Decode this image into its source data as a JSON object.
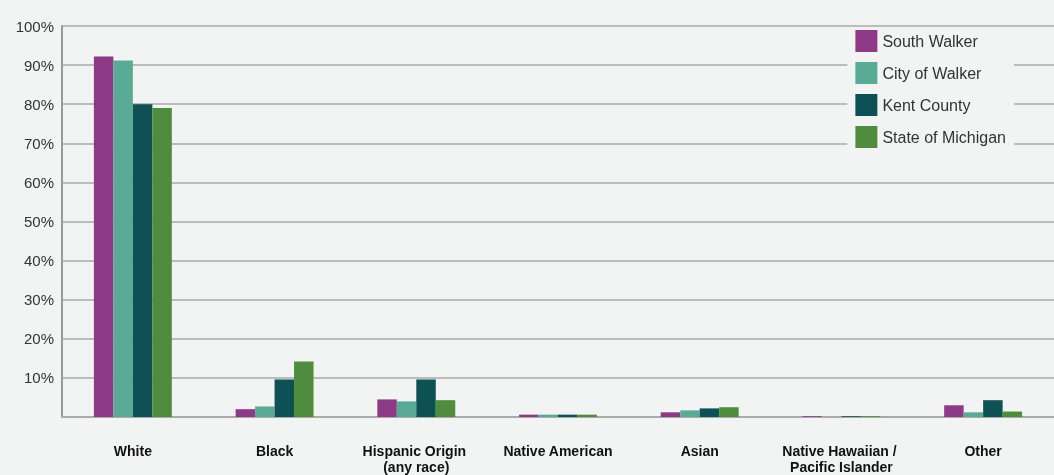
{
  "chart_data": {
    "type": "bar",
    "categories": [
      "White",
      "Black",
      "Hispanic Origin (any race)",
      "Native American",
      "Asian",
      "Native Hawaiian / Pacific Islander",
      "Other"
    ],
    "series": [
      {
        "name": "South Walker",
        "color": "#8e3a86",
        "values": [
          92.2,
          2.0,
          4.5,
          0.6,
          1.2,
          0.2,
          3.0
        ]
      },
      {
        "name": "City of Walker",
        "color": "#5aab96",
        "values": [
          91.2,
          2.7,
          4.0,
          0.6,
          1.7,
          0,
          1.2
        ]
      },
      {
        "name": "Kent County",
        "color": "#0e5155",
        "values": [
          80,
          9.6,
          9.6,
          0.6,
          2.2,
          0.2,
          4.3
        ]
      },
      {
        "name": "State of Michigan",
        "color": "#4f8c3e",
        "values": [
          79,
          14.2,
          4.3,
          0.6,
          2.5,
          0.2,
          1.4
        ]
      }
    ],
    "ylim": [
      0,
      100
    ],
    "yticks": [
      {
        "value": 0,
        "label": null
      },
      {
        "value": 10,
        "label": "10%"
      },
      {
        "value": 20,
        "label": "20%"
      },
      {
        "value": 30,
        "label": "30%"
      },
      {
        "value": 40,
        "label": "40%"
      },
      {
        "value": 50,
        "label": "50%"
      },
      {
        "value": 60,
        "label": "60%"
      },
      {
        "value": 70,
        "label": "70%"
      },
      {
        "value": 80,
        "label": "80%"
      },
      {
        "value": 90,
        "label": "90%"
      },
      {
        "value": 100,
        "label": "100%"
      }
    ],
    "grid": "y",
    "legend": "top right"
  }
}
